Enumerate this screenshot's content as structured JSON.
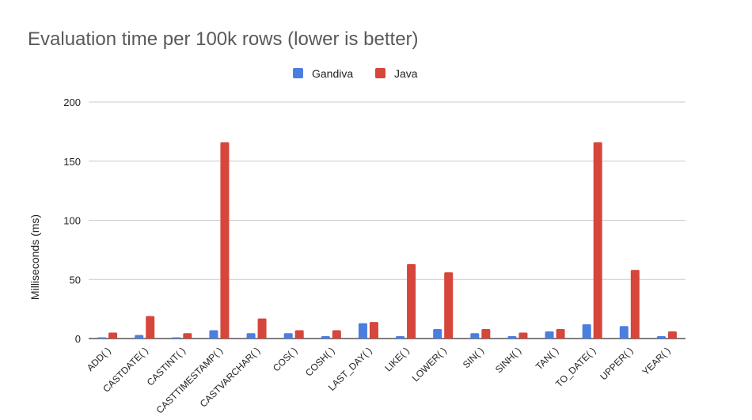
{
  "chart_data": {
    "type": "bar",
    "title": "Evaluation time per 100k rows (lower is better)",
    "xlabel": "",
    "ylabel": "Milliseconds (ms)",
    "ylim": [
      0,
      200
    ],
    "yticks": [
      0,
      50,
      100,
      150,
      200
    ],
    "grid": true,
    "legend_position": "top",
    "categories": [
      "ADD( )",
      "CASTDATE( )",
      "CASTINT( )",
      "CASTTIMESTAMP( )",
      "CASTVARCHAR( )",
      "COS( )",
      "COSH( )",
      "LAST_DAY( )",
      "LIKE( )",
      "LOWER( )",
      "SIN( )",
      "SINH( )",
      "TAN( )",
      "TO_DATE( )",
      "UPPER( )",
      "YEAR( )"
    ],
    "series": [
      {
        "name": "Gandiva",
        "color": "#4a7fe0",
        "values": [
          1,
          3,
          1,
          7,
          4.5,
          4.5,
          2,
          13,
          2,
          8,
          4.5,
          2,
          6,
          12,
          10.5,
          2
        ]
      },
      {
        "name": "Java",
        "color": "#d6463a",
        "values": [
          5,
          19,
          4.5,
          166,
          17,
          7,
          7,
          14,
          63,
          56,
          8,
          5,
          8,
          166,
          58,
          6
        ]
      }
    ]
  }
}
